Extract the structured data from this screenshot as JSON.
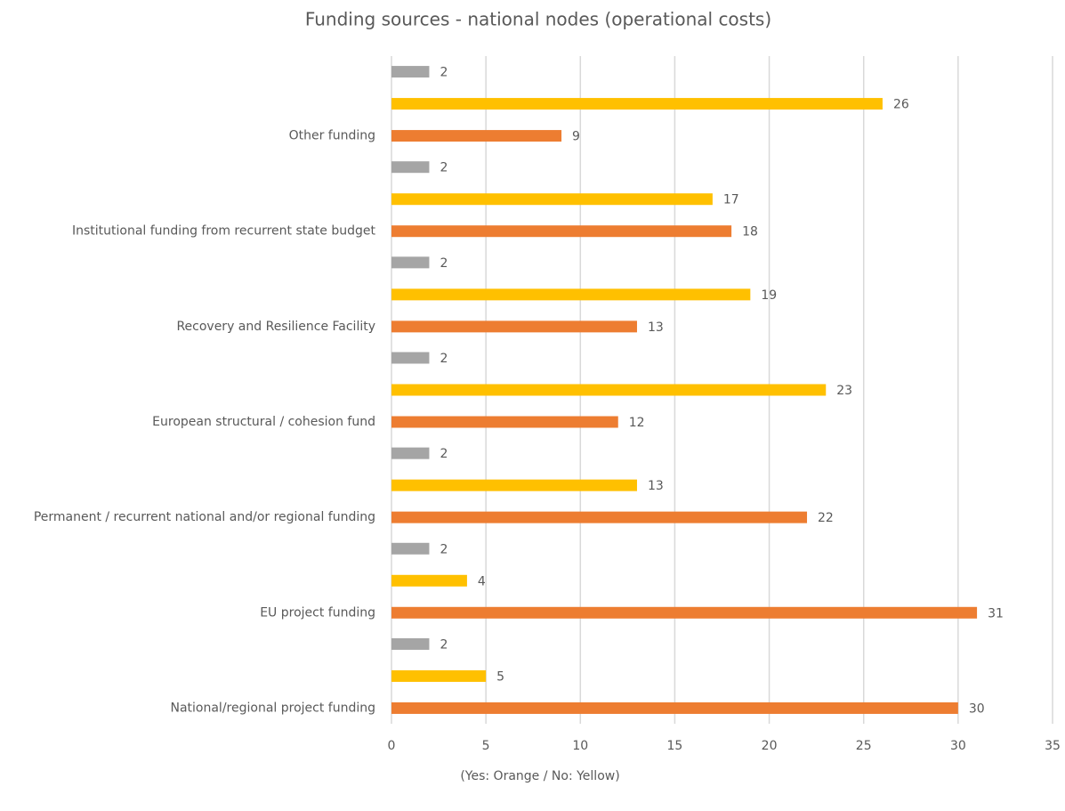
{
  "chart_data": {
    "type": "hbar",
    "title": "Funding sources - national nodes (operational costs)",
    "caption": "(Yes: Orange / No: Yellow)",
    "categories": [
      "Other funding",
      "Institutional funding from recurrent state budget",
      "Recovery and Resilience Facility",
      "European structural / cohesion fund",
      "Permanent / recurrent national and/or regional funding",
      "EU project funding",
      "National/regional project funding"
    ],
    "series": [
      {
        "color": "#ed7d31",
        "values": [
          9,
          18,
          13,
          12,
          22,
          31,
          30
        ]
      },
      {
        "color": "#ffc000",
        "values": [
          26,
          17,
          19,
          23,
          13,
          4,
          5
        ]
      },
      {
        "color": "#a5a5a5",
        "values": [
          2,
          2,
          2,
          2,
          2,
          2,
          2
        ]
      }
    ],
    "xlim": [
      0,
      35
    ],
    "xticks": [
      0,
      5,
      10,
      15,
      20,
      25,
      30,
      35
    ],
    "grid": true
  }
}
